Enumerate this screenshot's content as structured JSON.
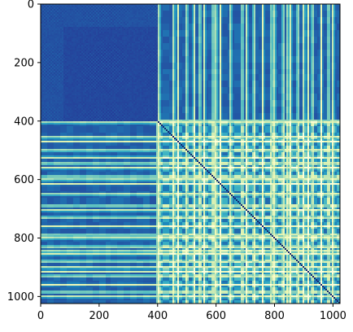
{
  "chart_data": {
    "type": "heatmap",
    "title": "",
    "xlabel": "",
    "ylabel": "",
    "xlim": [
      0,
      1024
    ],
    "ylim": [
      1024,
      0
    ],
    "x_ticks": [
      0,
      200,
      400,
      600,
      800,
      1000
    ],
    "y_ticks": [
      0,
      200,
      400,
      600,
      800,
      1000
    ],
    "x_tick_labels": [
      "0",
      "200",
      "400",
      "600",
      "800",
      "1000"
    ],
    "y_tick_labels": [
      "0",
      "200",
      "400",
      "600",
      "800",
      "1000"
    ],
    "matrix_size": [
      1024,
      1024
    ],
    "colormap": "YlGnBu",
    "colormap_stops": [
      "#081d58",
      "#253494",
      "#225ea8",
      "#1d91c0",
      "#41b6c4",
      "#7fcdbb",
      "#c7e9b4",
      "#edf8b1",
      "#ffffd9"
    ],
    "grid": false,
    "legend": "none",
    "description_blocks": [
      {
        "region": "rows 0-400 x cols 0-400",
        "level": "low"
      },
      {
        "region": "rows 0-400 x cols 400-1024",
        "level": "striped"
      },
      {
        "region": "rows 400-1024 x cols 0-400",
        "level": "striped"
      },
      {
        "region": "rows 400-1024 x cols 400-1024",
        "level": "checkerboard"
      }
    ]
  }
}
